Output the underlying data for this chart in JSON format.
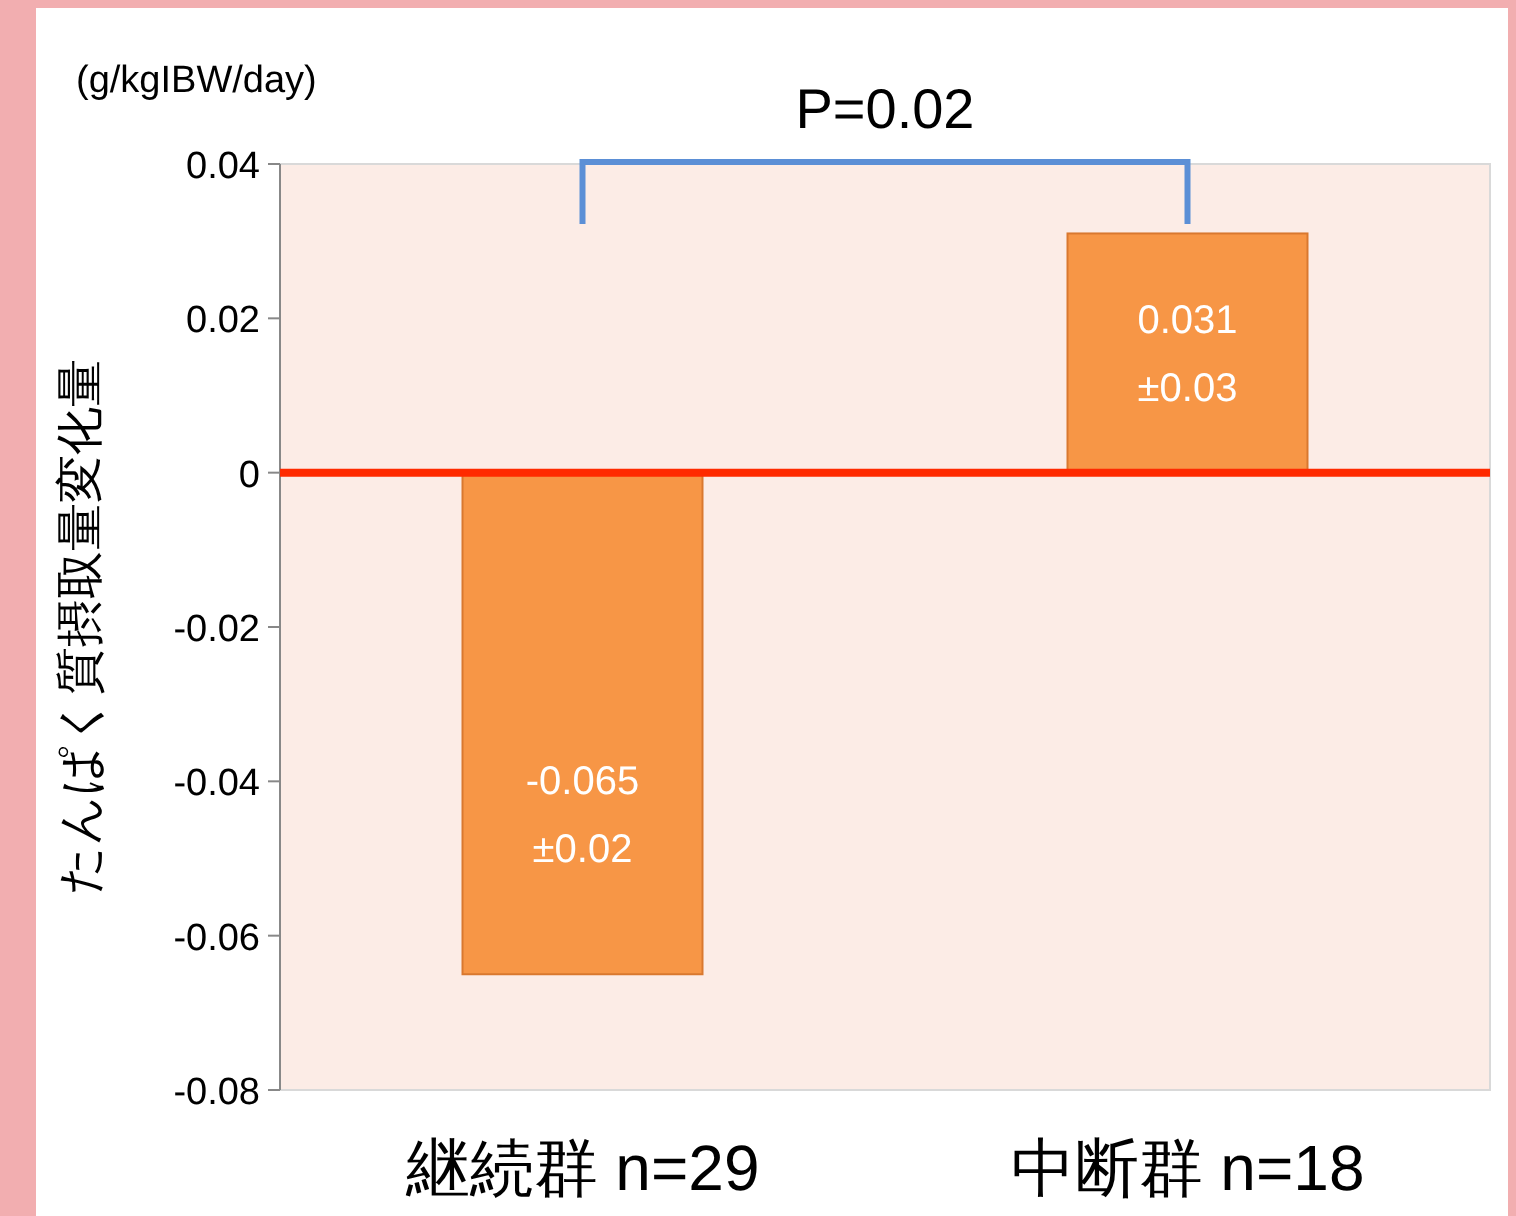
{
  "chart_data": {
    "type": "bar",
    "categories": [
      "継続群 n=29",
      "中断群 n=18"
    ],
    "values": [
      -0.065,
      0.031
    ],
    "color": "#f79646",
    "value_labels": [
      "-0.065\n±0.02",
      "0.031\n±0.03"
    ],
    "ylabel": "たんぱく質摂取量変化量",
    "ylim": [
      -0.08,
      0.04
    ],
    "yticks": [
      -0.08,
      -0.06,
      -0.04,
      -0.02,
      0,
      0.02,
      0.04
    ],
    "ref_lines": [
      {
        "axis": "y",
        "value": 0,
        "color": "#ff2a00"
      }
    ],
    "annotations": [
      "(g/kgIBW/day)",
      "P=0.02"
    ]
  }
}
